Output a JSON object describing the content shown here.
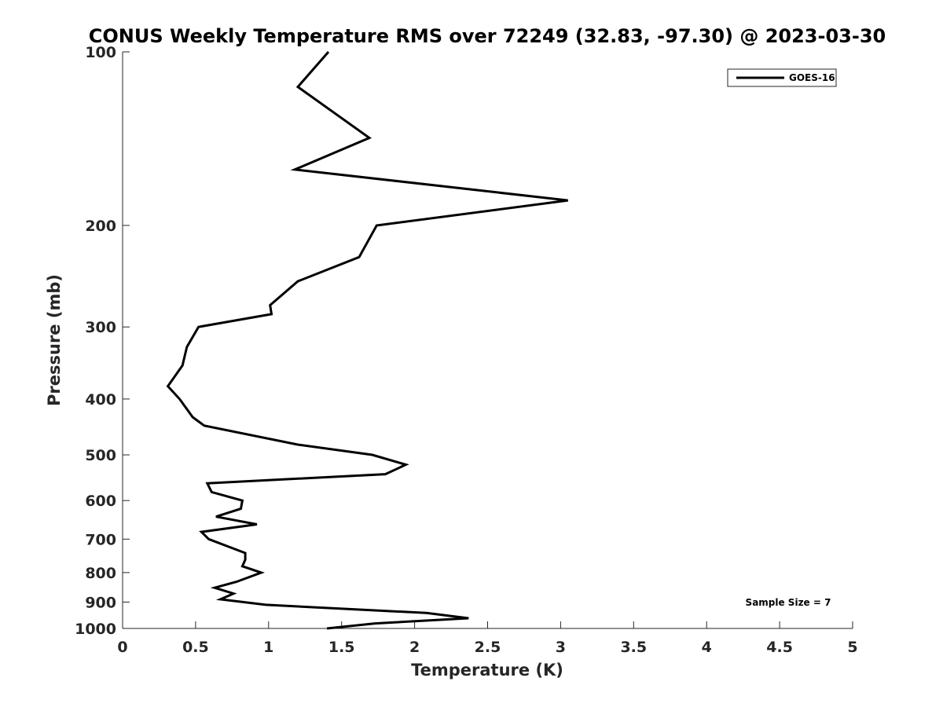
{
  "chart_data": {
    "type": "line",
    "title": "CONUS Weekly Temperature RMS over 72249 (32.83, -97.30) @ 2023-03-30",
    "xlabel": "Temperature (K)",
    "ylabel": "Pressure (mb)",
    "xlim": [
      0,
      5
    ],
    "ylim": [
      100,
      1000
    ],
    "y_scale": "log",
    "y_reversed": true,
    "grid": false,
    "legend_position": "top-right",
    "x_ticks": [
      0,
      0.5,
      1,
      1.5,
      2,
      2.5,
      3,
      3.5,
      4,
      4.5,
      5
    ],
    "x_tick_labels": [
      "0",
      "0.5",
      "1",
      "1.5",
      "2",
      "2.5",
      "3",
      "3.5",
      "4",
      "4.5",
      "5"
    ],
    "y_ticks": [
      100,
      200,
      300,
      400,
      500,
      600,
      700,
      800,
      900,
      1000
    ],
    "y_tick_labels": [
      "100",
      "200",
      "300",
      "400",
      "500",
      "600",
      "700",
      "800",
      "900",
      "1000"
    ],
    "annotation": "Sample Size = 7",
    "series": [
      {
        "name": "GOES-16",
        "color": "#000000",
        "x": [
          1.41,
          1.2,
          1.69,
          1.18,
          3.05,
          1.74,
          1.62,
          1.2,
          1.01,
          1.02,
          0.52,
          0.44,
          0.41,
          0.31,
          0.39,
          0.48,
          0.56,
          1.2,
          1.71,
          1.94,
          1.8,
          0.58,
          0.61,
          0.82,
          0.81,
          0.64,
          0.92,
          0.54,
          0.59,
          0.84,
          0.84,
          0.82,
          0.95,
          0.78,
          0.63,
          0.76,
          0.67,
          0.98,
          2.08,
          2.37,
          1.73,
          1.4
        ],
        "y": [
          100,
          115,
          141,
          160,
          181,
          200,
          227,
          250,
          275,
          285,
          300,
          325,
          350,
          380,
          400,
          430,
          445,
          480,
          500,
          520,
          540,
          560,
          580,
          600,
          620,
          640,
          660,
          680,
          700,
          740,
          760,
          780,
          800,
          830,
          850,
          870,
          890,
          910,
          940,
          960,
          980,
          1000
        ]
      }
    ]
  }
}
